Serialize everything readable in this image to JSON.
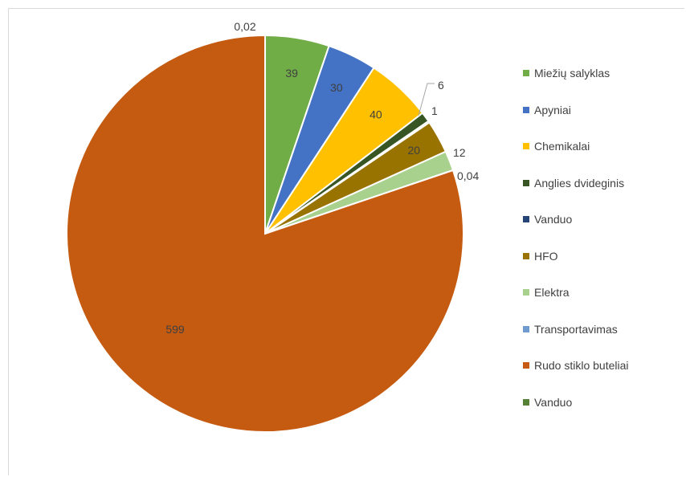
{
  "chart_data": {
    "type": "pie",
    "title": "",
    "slices": [
      {
        "label": "Vanduo",
        "value": 0.02,
        "display": "0,02",
        "color": "#548235"
      },
      {
        "label": "Miežių salyklas",
        "value": 39,
        "display": "39",
        "color": "#70ad47"
      },
      {
        "label": "Apyniai",
        "value": 30,
        "display": "30",
        "color": "#4472c4"
      },
      {
        "label": "Chemikalai",
        "value": 40,
        "display": "40",
        "color": "#ffc000"
      },
      {
        "label": "Anglies dvideginis",
        "value": 6,
        "display": "6",
        "color": "#375623"
      },
      {
        "label": "Vanduo",
        "value": 1,
        "display": "1",
        "color": "#264478"
      },
      {
        "label": "HFO",
        "value": 20,
        "display": "20",
        "color": "#997300"
      },
      {
        "label": "Elektra",
        "value": 12,
        "display": "12",
        "color": "#a9d18e"
      },
      {
        "label": "Transportavimas",
        "value": 0.04,
        "display": "0,04",
        "color": "#6f9bd1"
      },
      {
        "label": "Rudo stiklo buteliai",
        "value": 599,
        "display": "599",
        "color": "#c55a11"
      }
    ],
    "legend": {
      "position": "right",
      "entries": [
        {
          "label": "Miežių salyklas",
          "color": "#70ad47"
        },
        {
          "label": "Apyniai",
          "color": "#4472c4"
        },
        {
          "label": "Chemikalai",
          "color": "#ffc000"
        },
        {
          "label": "Anglies dvideginis",
          "color": "#375623"
        },
        {
          "label": "Vanduo",
          "color": "#264478"
        },
        {
          "label": "HFO",
          "color": "#997300"
        },
        {
          "label": "Elektra",
          "color": "#a9d18e"
        },
        {
          "label": "Transportavimas",
          "color": "#6f9bd1"
        },
        {
          "label": "Rudo stiklo buteliai",
          "color": "#c55a11"
        },
        {
          "label": "Vanduo",
          "color": "#548235"
        }
      ]
    }
  }
}
